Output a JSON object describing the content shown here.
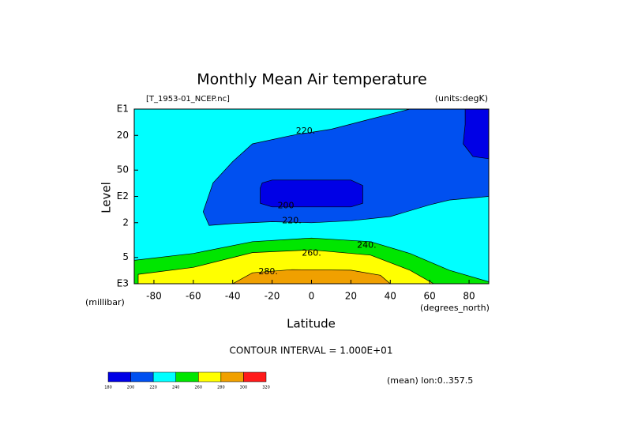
{
  "chart_data": {
    "type": "contour",
    "title": "Monthly Mean Air temperature",
    "file_label": "[T_1953-01_NCEP.nc]",
    "units_label": "(units:degK)",
    "x_label": "Latitude",
    "x_units": "(degrees_north)",
    "y_label": "Level",
    "y_units": "(millibar)",
    "xlim": [
      -90,
      90
    ],
    "xticks": [
      -80,
      -60,
      -40,
      -20,
      0,
      20,
      40,
      60,
      80
    ],
    "ylim": [
      1000,
      10
    ],
    "log_y": true,
    "yticks": [
      {
        "value": 10,
        "label": "E1"
      },
      20,
      50,
      {
        "value": 100,
        "label": "E2"
      },
      {
        "value": 200,
        "label": "2"
      },
      {
        "value": 500,
        "label": "5"
      },
      {
        "value": 1000,
        "label": "E3"
      }
    ],
    "contour_interval": "CONTOUR INTERVAL = 1.000E+01",
    "footer": "(mean) lon:0..357.5",
    "levels": [
      180,
      200,
      220,
      240,
      260,
      280,
      300,
      320
    ],
    "colors": [
      "#0000e6",
      "#0050f0",
      "#00ffff",
      "#00e600",
      "#ffff00",
      "#f0a000",
      "#ff1a1a"
    ],
    "regions": [
      {
        "level": 220,
        "points": [
          [
            -90,
            1000
          ],
          [
            -90,
            10
          ],
          [
            90,
            10
          ],
          [
            90,
            1000
          ]
        ]
      },
      {
        "level": 200,
        "points": [
          [
            -52,
            215
          ],
          [
            -55,
            150
          ],
          [
            -50,
            70
          ],
          [
            -40,
            40
          ],
          [
            -30,
            25
          ],
          [
            -10,
            20
          ],
          [
            10,
            17
          ],
          [
            30,
            13
          ],
          [
            50,
            10
          ],
          [
            90,
            10
          ],
          [
            90,
            100
          ],
          [
            70,
            110
          ],
          [
            60,
            125
          ],
          [
            40,
            170
          ],
          [
            20,
            190
          ],
          [
            0,
            200
          ],
          [
            -20,
            195
          ],
          [
            -40,
            205
          ]
        ]
      },
      {
        "level": 180,
        "points": [
          [
            -25,
            70
          ],
          [
            -20,
            65
          ],
          [
            20,
            65
          ],
          [
            26,
            75
          ],
          [
            26,
            120
          ],
          [
            20,
            132
          ],
          [
            -20,
            132
          ],
          [
            -26,
            120
          ],
          [
            -26,
            80
          ]
        ]
      },
      {
        "level": 180,
        "points": [
          [
            78,
            10
          ],
          [
            90,
            10
          ],
          [
            90,
            37
          ],
          [
            82,
            35
          ],
          [
            77,
            25
          ],
          [
            78,
            15
          ]
        ]
      },
      {
        "level": 240,
        "points": [
          [
            -90,
            1000
          ],
          [
            -90,
            540
          ],
          [
            -60,
            450
          ],
          [
            -30,
            330
          ],
          [
            0,
            300
          ],
          [
            30,
            330
          ],
          [
            50,
            450
          ],
          [
            70,
            700
          ],
          [
            90,
            950
          ],
          [
            90,
            1000
          ]
        ]
      },
      {
        "level": 260,
        "points": [
          [
            -88,
            1000
          ],
          [
            -88,
            780
          ],
          [
            -60,
            650
          ],
          [
            -30,
            440
          ],
          [
            0,
            410
          ],
          [
            30,
            470
          ],
          [
            50,
            700
          ],
          [
            62,
            1000
          ]
        ]
      },
      {
        "level": 280,
        "points": [
          [
            -40,
            1000
          ],
          [
            -30,
            750
          ],
          [
            -10,
            690
          ],
          [
            20,
            700
          ],
          [
            35,
            800
          ],
          [
            40,
            1000
          ]
        ]
      }
    ],
    "contour_labels": [
      {
        "lat": -3,
        "level": 18,
        "value": 220,
        "label": "220."
      },
      {
        "lat": -13,
        "level": 128,
        "value": 200,
        "label": "200"
      },
      {
        "lat": -10,
        "level": 190,
        "value": 220,
        "label": "220."
      },
      {
        "lat": 28,
        "level": 365,
        "value": 240,
        "label": "240."
      },
      {
        "lat": 0,
        "level": 450,
        "value": 260,
        "label": "260."
      },
      {
        "lat": -22,
        "level": 730,
        "value": 280,
        "label": "280."
      }
    ]
  }
}
